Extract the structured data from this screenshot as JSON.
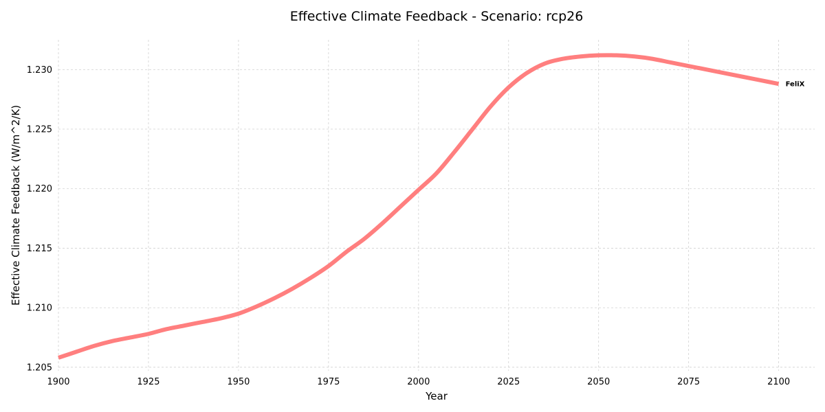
{
  "chart_data": {
    "type": "line",
    "title": "Effective Climate Feedback - Scenario: rcp26",
    "xlabel": "Year",
    "ylabel": "Effective Climate Feedback (W/m^2/K)",
    "xlim": [
      1900,
      2110
    ],
    "ylim": [
      1.2047,
      1.2325
    ],
    "xticks": [
      1900,
      1925,
      1950,
      1975,
      2000,
      2025,
      2050,
      2075,
      2100
    ],
    "xtick_labels": [
      "1900",
      "1925",
      "1950",
      "1975",
      "2000",
      "2025",
      "2050",
      "2075",
      "2100"
    ],
    "yticks": [
      1.205,
      1.21,
      1.215,
      1.22,
      1.225,
      1.23
    ],
    "ytick_labels": [
      "1.205",
      "1.210",
      "1.215",
      "1.220",
      "1.225",
      "1.230"
    ],
    "grid": true,
    "legend": "none",
    "series": [
      {
        "name": "FeliX",
        "color": "#ff7f7f",
        "x": [
          1900,
          1905,
          1910,
          1915,
          1920,
          1925,
          1930,
          1935,
          1940,
          1945,
          1950,
          1955,
          1960,
          1965,
          1970,
          1975,
          1980,
          1985,
          1990,
          1995,
          2000,
          2005,
          2010,
          2015,
          2020,
          2025,
          2030,
          2035,
          2040,
          2045,
          2050,
          2055,
          2060,
          2065,
          2070,
          2075,
          2080,
          2085,
          2090,
          2095,
          2100
        ],
        "y": [
          1.2058,
          1.2063,
          1.2068,
          1.2072,
          1.2075,
          1.2078,
          1.2082,
          1.2085,
          1.2088,
          1.2091,
          1.2095,
          1.2101,
          1.2108,
          1.2116,
          1.2125,
          1.2135,
          1.2147,
          1.2158,
          1.2171,
          1.2185,
          1.2199,
          1.2213,
          1.2231,
          1.225,
          1.2269,
          1.2285,
          1.2297,
          1.2305,
          1.2309,
          1.2311,
          1.2312,
          1.2312,
          1.2311,
          1.2309,
          1.2306,
          1.2303,
          1.23,
          1.2297,
          1.2294,
          1.2291,
          1.2288
        ]
      }
    ]
  }
}
